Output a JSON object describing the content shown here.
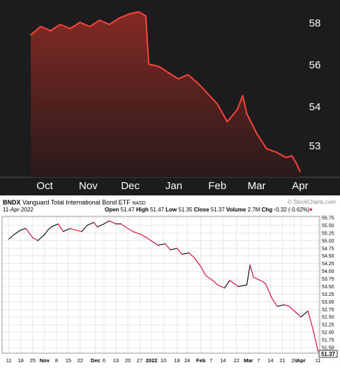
{
  "top_chart": {
    "months": [
      "Oct",
      "Nov",
      "Dec",
      "Jan",
      "Feb",
      "Mar",
      "Apr"
    ],
    "price_labels": [
      "58",
      "56",
      "54",
      "53"
    ],
    "colors": {
      "line": "#ff453a",
      "background": "#1c1c1e",
      "text": "#ffffff"
    }
  },
  "bottom_chart": {
    "symbol": "BNDX",
    "name": "Vanguard Total International Bond ETF",
    "exchange": "NASD",
    "date": "11-Apr-2022",
    "watermark": "© StockCharts.com",
    "open_label": "Open",
    "open": "51.47",
    "high_label": "High",
    "high": "51.47",
    "low_label": "Low",
    "low": "51.35",
    "close_label": "Close",
    "close": "51.37",
    "volume_label": "Volume",
    "volume": "2.7M",
    "chg_label": "Chg",
    "chg": "-0.32 (-0.62%)",
    "last_price": "51.37",
    "colors": {
      "up": "#000000",
      "down": "#d6002a",
      "grid": "#d8d8d8"
    }
  },
  "chart_data": [
    {
      "type": "area",
      "title": "",
      "xlabel": "",
      "ylabel": "",
      "x_ticks": [
        "Oct",
        "Nov",
        "Dec",
        "Jan",
        "Feb",
        "Mar",
        "Apr"
      ],
      "y_ticks": [
        "58",
        "56",
        "54",
        "53"
      ],
      "grid": false,
      "series": [
        {
          "x": [
            "2021-10-01",
            "2021-10-08",
            "2021-10-15",
            "2021-10-22",
            "2021-10-29",
            "2021-11-05",
            "2021-11-12",
            "2021-11-19",
            "2021-11-26",
            "2021-12-03",
            "2021-12-10",
            "2021-12-17",
            "2021-12-22",
            "2021-12-24",
            "2021-12-31",
            "2022-01-07",
            "2022-01-14",
            "2022-01-21",
            "2022-01-28",
            "2022-02-04",
            "2022-02-11",
            "2022-02-18",
            "2022-02-25",
            "2022-03-01",
            "2022-03-04",
            "2022-03-11",
            "2022-03-18",
            "2022-03-25",
            "2022-04-01",
            "2022-04-05",
            "2022-04-08",
            "2022-04-11"
          ],
          "y": [
            57.4,
            57.8,
            57.6,
            57.9,
            57.7,
            58.0,
            57.8,
            58.1,
            57.9,
            58.2,
            58.4,
            58.5,
            58.3,
            56.0,
            55.9,
            55.6,
            55.3,
            55.5,
            55.1,
            54.6,
            54.1,
            53.6,
            53.9,
            54.5,
            53.8,
            53.3,
            52.8,
            52.6,
            52.3,
            52.4,
            52.0,
            51.5
          ]
        }
      ]
    },
    {
      "type": "line",
      "title": "BNDX Vanguard Total International Bond ETF NASD",
      "xlabel": "",
      "ylabel": "",
      "x_ticks": [
        "11",
        "18",
        "25",
        "Nov",
        "8",
        "15",
        "22",
        "Dec",
        "6",
        "13",
        "20",
        "27",
        "2022",
        "10",
        "18",
        "24",
        "Feb",
        "7",
        "14",
        "22",
        "Mar",
        "7",
        "14",
        "21",
        "28",
        "Apr",
        "11"
      ],
      "ylim": [
        51.5,
        55.75
      ],
      "y_ticks": [
        55.75,
        55.5,
        55.25,
        55.0,
        54.75,
        54.5,
        54.25,
        54.0,
        53.75,
        53.5,
        53.25,
        53.0,
        52.75,
        52.5,
        52.25,
        52.0,
        51.75,
        51.5
      ],
      "grid": true,
      "series": [
        {
          "name": "BNDX",
          "x": [
            "2021-10-11",
            "2021-10-14",
            "2021-10-18",
            "2021-10-21",
            "2021-10-25",
            "2021-10-28",
            "2021-11-01",
            "2021-11-03",
            "2021-11-05",
            "2021-11-09",
            "2021-11-12",
            "2021-11-16",
            "2021-11-19",
            "2021-11-23",
            "2021-11-26",
            "2021-11-30",
            "2021-12-02",
            "2021-12-06",
            "2021-12-09",
            "2021-12-13",
            "2021-12-16",
            "2021-12-20",
            "2021-12-23",
            "2021-12-28",
            "2021-12-31",
            "2022-01-04",
            "2022-01-07",
            "2022-01-11",
            "2022-01-14",
            "2022-01-18",
            "2022-01-21",
            "2022-01-25",
            "2022-01-28",
            "2022-02-01",
            "2022-02-04",
            "2022-02-08",
            "2022-02-11",
            "2022-02-15",
            "2022-02-18",
            "2022-02-23",
            "2022-02-28",
            "2022-03-02",
            "2022-03-04",
            "2022-03-08",
            "2022-03-11",
            "2022-03-15",
            "2022-03-18",
            "2022-03-22",
            "2022-03-25",
            "2022-03-29",
            "2022-04-01",
            "2022-04-05",
            "2022-04-08",
            "2022-04-11"
          ],
          "y": [
            55.05,
            55.2,
            55.35,
            55.4,
            55.1,
            55.0,
            55.2,
            55.35,
            55.45,
            55.55,
            55.3,
            55.4,
            55.35,
            55.3,
            55.5,
            55.6,
            55.45,
            55.55,
            55.65,
            55.55,
            55.55,
            55.4,
            55.3,
            55.2,
            55.1,
            54.95,
            54.85,
            54.9,
            54.7,
            54.75,
            54.55,
            54.6,
            54.45,
            54.15,
            53.85,
            53.7,
            53.55,
            53.45,
            53.7,
            53.5,
            53.55,
            54.2,
            53.8,
            53.7,
            53.6,
            53.1,
            52.85,
            52.9,
            52.85,
            52.65,
            52.5,
            52.7,
            52.1,
            51.37
          ]
        }
      ]
    }
  ]
}
